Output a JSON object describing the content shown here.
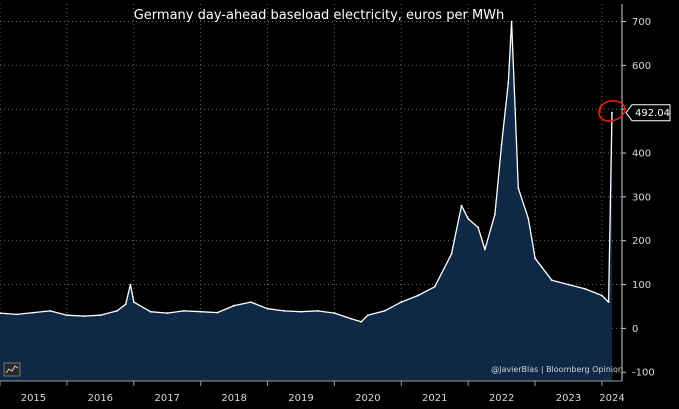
{
  "chart_data": {
    "type": "line",
    "title": "Germany day-ahead baseload electricity, euros per MWh",
    "xlabel": "",
    "ylabel": "",
    "xlim": [
      2015.0,
      2024.3
    ],
    "ylim": [
      -120,
      740
    ],
    "y_ticks": [
      -100,
      0,
      100,
      200,
      300,
      400,
      500,
      600,
      700
    ],
    "x_tick_labels": [
      "2015",
      "2016",
      "2017",
      "2018",
      "2019",
      "2020",
      "2021",
      "2022",
      "2023",
      "2024"
    ],
    "last_value": 492.04,
    "last_value_label": "492.04",
    "annotation": "red circle around latest spike",
    "credit": "@JavierBlas | Bloomberg Opinion",
    "grid": true,
    "series": [
      {
        "name": "Germany day-ahead baseload",
        "x": [
          2015.0,
          2015.25,
          2015.5,
          2015.75,
          2016.0,
          2016.25,
          2016.5,
          2016.75,
          2016.88,
          2016.95,
          2017.0,
          2017.25,
          2017.5,
          2017.75,
          2018.0,
          2018.25,
          2018.5,
          2018.75,
          2019.0,
          2019.25,
          2019.5,
          2019.75,
          2020.0,
          2020.25,
          2020.4,
          2020.5,
          2020.75,
          2021.0,
          2021.25,
          2021.5,
          2021.75,
          2021.9,
          2022.0,
          2022.15,
          2022.25,
          2022.4,
          2022.5,
          2022.6,
          2022.65,
          2022.75,
          2022.9,
          2023.0,
          2023.25,
          2023.5,
          2023.75,
          2024.0,
          2024.1,
          2024.15
        ],
        "values": [
          35,
          32,
          36,
          40,
          30,
          28,
          30,
          40,
          55,
          100,
          60,
          38,
          35,
          40,
          38,
          36,
          52,
          60,
          45,
          40,
          38,
          40,
          35,
          22,
          15,
          30,
          40,
          60,
          75,
          95,
          170,
          280,
          250,
          230,
          180,
          260,
          420,
          560,
          700,
          320,
          250,
          160,
          110,
          100,
          90,
          75,
          60,
          492.04
        ]
      }
    ]
  }
}
